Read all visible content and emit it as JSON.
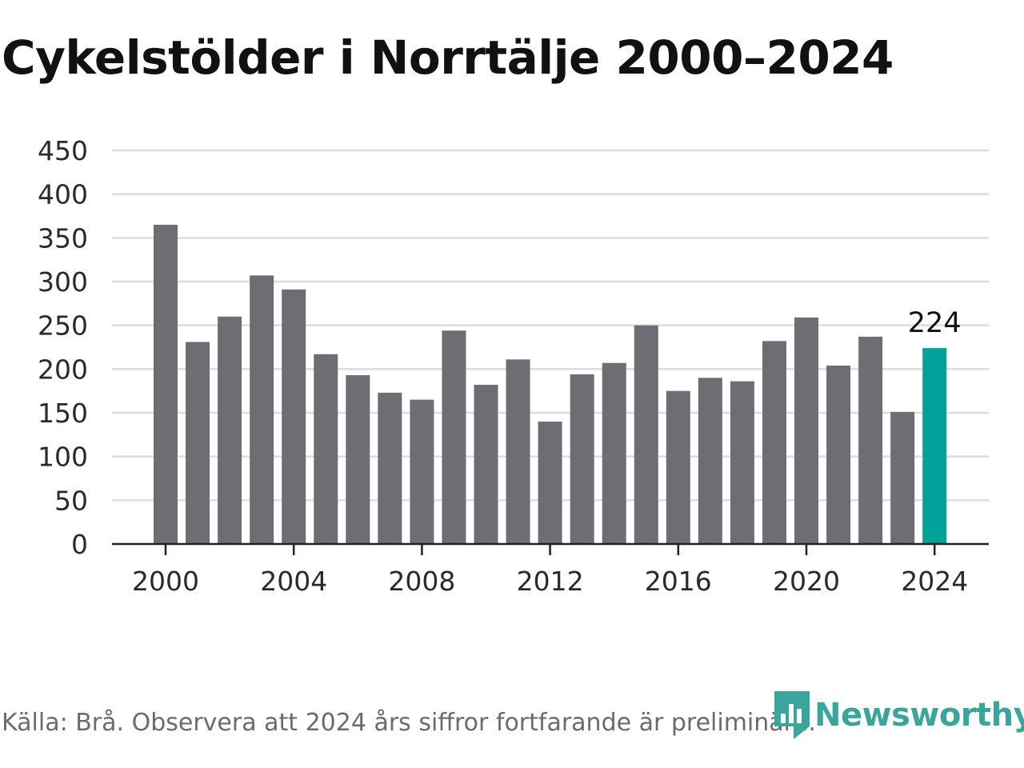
{
  "title": "Cykelstölder i Norrtälje 2000–2024",
  "source": "Källa: Brå. Observera att 2024 års siffror fortfarande är preliminära.",
  "brand": {
    "name": "Newsworthy",
    "logo_icon": "newsworthy-bar-chart-logo-icon",
    "color": "#3aa59c"
  },
  "colors": {
    "bar": "#6e6d73",
    "highlight": "#00a39a",
    "grid": "#dddddd",
    "axis": "#222222"
  },
  "chart_data": {
    "type": "bar",
    "title": "Cykelstölder i Norrtälje 2000–2024",
    "xlabel": "",
    "ylabel": "",
    "categories": [
      2000,
      2001,
      2002,
      2003,
      2004,
      2005,
      2006,
      2007,
      2008,
      2009,
      2010,
      2011,
      2012,
      2013,
      2014,
      2015,
      2016,
      2017,
      2018,
      2019,
      2020,
      2021,
      2022,
      2023,
      2024
    ],
    "values": [
      365,
      231,
      260,
      307,
      291,
      217,
      193,
      173,
      165,
      244,
      182,
      211,
      140,
      194,
      207,
      250,
      175,
      190,
      186,
      232,
      259,
      204,
      237,
      151,
      224
    ],
    "highlight": {
      "category": 2024,
      "label": "224"
    },
    "ylim": [
      0,
      450
    ],
    "yticks": [
      0,
      50,
      100,
      150,
      200,
      250,
      300,
      350,
      400,
      450
    ],
    "xticks": [
      2000,
      2004,
      2008,
      2012,
      2016,
      2020,
      2024
    ],
    "grid": true,
    "legend": "none"
  }
}
